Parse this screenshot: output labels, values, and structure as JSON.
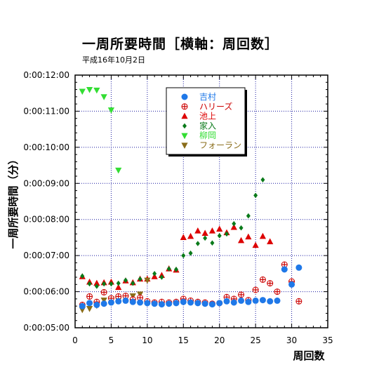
{
  "chart_data": {
    "type": "scatter",
    "title": "一周所要時間［横軸：周回数］",
    "subtitle": "平成16年10月2日",
    "xlabel": "周回数",
    "ylabel": "一周所要時間（分）",
    "xlim": [
      0,
      35
    ],
    "ylim": [
      300,
      720
    ],
    "x_ticks": [
      0,
      5,
      10,
      15,
      20,
      25,
      30,
      35
    ],
    "y_ticks": [
      300,
      360,
      420,
      480,
      540,
      600,
      660,
      720
    ],
    "y_tick_labels": [
      "0:00:05:00",
      "0:00:06:00",
      "0:00:07:00",
      "0:00:08:00",
      "0:00:09:00",
      "0:00:10:00",
      "0:00:11:00",
      "0:00:12:00"
    ],
    "grid": true,
    "legend_position": "top-center",
    "series": [
      {
        "name": "吉村",
        "marker": "circle",
        "color": "#1f78e8",
        "x": [
          1,
          2,
          3,
          4,
          5,
          6,
          7,
          8,
          9,
          10,
          11,
          12,
          13,
          14,
          15,
          16,
          17,
          18,
          19,
          20,
          21,
          22,
          23,
          24,
          25,
          26,
          27,
          28,
          29,
          30,
          31
        ],
        "y": [
          336,
          341,
          338,
          340,
          342,
          344,
          345,
          343,
          342,
          341,
          340,
          339,
          340,
          341,
          343,
          342,
          341,
          340,
          339,
          341,
          344,
          342,
          345,
          343,
          345,
          346,
          344,
          345,
          397,
          372,
          400
        ]
      },
      {
        "name": "ハリーズ",
        "marker": "cross",
        "color": "#cc0000",
        "x": [
          1,
          2,
          3,
          4,
          5,
          6,
          7,
          8,
          9,
          10,
          11,
          12,
          13,
          14,
          15,
          16,
          17,
          18,
          19,
          20,
          21,
          22,
          23,
          24,
          25,
          26,
          27,
          28,
          29,
          30,
          31
        ],
        "y": [
          338,
          352,
          343,
          359,
          349,
          352,
          353,
          347,
          350,
          344,
          342,
          343,
          342,
          343,
          348,
          345,
          343,
          342,
          340,
          341,
          351,
          348,
          355,
          346,
          363,
          380,
          374,
          360,
          405,
          377,
          344
        ]
      },
      {
        "name": "池上",
        "marker": "triangle-up",
        "color": "#dd0000",
        "x": [
          1,
          2,
          3,
          4,
          5,
          6,
          7,
          8,
          9,
          10,
          11,
          12,
          13,
          14,
          15,
          16,
          17,
          18,
          19,
          20,
          21,
          22,
          23,
          24,
          25,
          26,
          27
        ],
        "y": [
          385,
          376,
          374,
          375,
          376,
          367,
          378,
          375,
          381,
          381,
          385,
          387,
          398,
          396,
          450,
          452,
          461,
          457,
          461,
          464,
          458,
          467,
          445,
          451,
          437,
          452,
          443
        ]
      },
      {
        "name": "家入",
        "marker": "diamond",
        "color": "#0a7a1a",
        "x": [
          1,
          2,
          3,
          4,
          5,
          6,
          7,
          8,
          9,
          10,
          11,
          12,
          13,
          14,
          15,
          16,
          17,
          18,
          19,
          20,
          21,
          22,
          23,
          24,
          25,
          26
        ],
        "y": [
          386,
          373,
          369,
          373,
          373,
          374,
          379,
          374,
          381,
          379,
          390,
          384,
          398,
          397,
          420,
          424,
          440,
          449,
          441,
          453,
          456,
          473,
          466,
          486,
          520,
          546
        ]
      },
      {
        "name": "柳岡",
        "marker": "triangle-down",
        "color": "#33dd33",
        "x": [
          1,
          2,
          3,
          4,
          5,
          6
        ],
        "y": [
          693,
          696,
          695,
          684,
          662,
          562
        ]
      },
      {
        "name": "フォーラン",
        "marker": "triangle-down",
        "color": "#8a6d1a",
        "x": [
          1,
          2,
          3,
          4,
          5,
          6,
          7,
          8,
          9,
          10
        ],
        "y": [
          330,
          332,
          337,
          346,
          348,
          346,
          349,
          353,
          356,
          379
        ]
      }
    ]
  }
}
